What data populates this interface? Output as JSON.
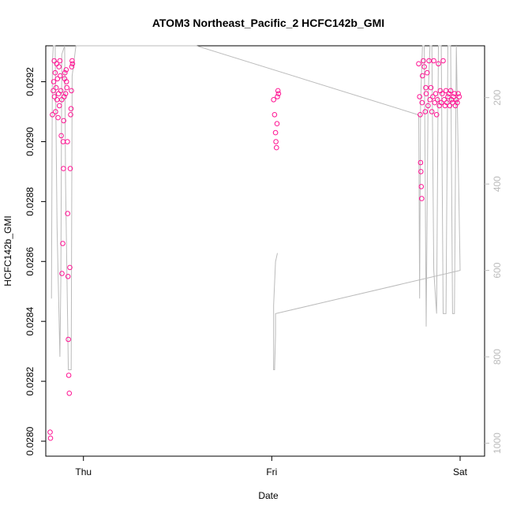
{
  "chart_data": {
    "type": "scatter",
    "title": "ATOM3 Northeast_Pacific_2 HCFC142b_GMI",
    "xlabel": "Date",
    "ylabel": "HCFC142b_GMI",
    "x_ticks": [
      "Thu",
      "Fri",
      "Sat"
    ],
    "x_tick_values": [
      1.0,
      2.0,
      3.0
    ],
    "xlim": [
      0.8,
      3.13
    ],
    "ylim": [
      0.02795,
      0.02932
    ],
    "y_ticks": [
      0.028,
      0.0282,
      0.0284,
      0.0286,
      0.0288,
      0.029,
      0.0292
    ],
    "y_tick_labels": [
      "0.0280",
      "0.0282",
      "0.0284",
      "0.0286",
      "0.0288",
      "0.0290",
      "0.0292"
    ],
    "right_axis": {
      "label": "",
      "ticks": [
        200,
        400,
        600,
        800,
        1000
      ],
      "ylim": [
        1030,
        80
      ],
      "color": "#bbbbbb"
    },
    "colors": {
      "points": "#ff1493",
      "line": "#bbbbbb"
    },
    "series": [
      {
        "type": "points",
        "values": [
          [
            0.835,
            0.02909
          ],
          [
            0.84,
            0.02917
          ],
          [
            0.842,
            0.0292
          ],
          [
            0.845,
            0.02927
          ],
          [
            0.846,
            0.02915
          ],
          [
            0.85,
            0.02923
          ],
          [
            0.852,
            0.0291
          ],
          [
            0.855,
            0.02918
          ],
          [
            0.858,
            0.02926
          ],
          [
            0.86,
            0.02914
          ],
          [
            0.862,
            0.02921
          ],
          [
            0.865,
            0.02908
          ],
          [
            0.868,
            0.02916
          ],
          [
            0.87,
            0.02925
          ],
          [
            0.872,
            0.02912
          ],
          [
            0.875,
            0.02927
          ],
          [
            0.877,
            0.02922
          ],
          [
            0.88,
            0.02917
          ],
          [
            0.882,
            0.02902
          ],
          [
            0.885,
            0.02914
          ],
          [
            0.886,
            0.02856
          ],
          [
            0.89,
            0.02866
          ],
          [
            0.892,
            0.029
          ],
          [
            0.894,
            0.02891
          ],
          [
            0.895,
            0.02907
          ],
          [
            0.898,
            0.02915
          ],
          [
            0.9,
            0.02921
          ],
          [
            0.902,
            0.02923
          ],
          [
            0.905,
            0.02916
          ],
          [
            0.908,
            0.02924
          ],
          [
            0.91,
            0.0292
          ],
          [
            0.912,
            0.02918
          ],
          [
            0.915,
            0.029
          ],
          [
            0.916,
            0.02876
          ],
          [
            0.918,
            0.02855
          ],
          [
            0.92,
            0.02834
          ],
          [
            0.922,
            0.02822
          ],
          [
            0.925,
            0.02816
          ],
          [
            0.928,
            0.02858
          ],
          [
            0.93,
            0.02891
          ],
          [
            0.932,
            0.02909
          ],
          [
            0.934,
            0.02911
          ],
          [
            0.936,
            0.02917
          ],
          [
            0.938,
            0.02925
          ],
          [
            0.94,
            0.02927
          ],
          [
            0.942,
            0.02926
          ],
          [
            0.823,
            0.02803
          ],
          [
            0.825,
            0.02801
          ],
          [
            2.01,
            0.02914
          ],
          [
            2.015,
            0.02909
          ],
          [
            2.02,
            0.02903
          ],
          [
            2.022,
            0.029
          ],
          [
            2.025,
            0.02898
          ],
          [
            2.028,
            0.02906
          ],
          [
            2.03,
            0.02915
          ],
          [
            2.033,
            0.02917
          ],
          [
            2.036,
            0.02916
          ],
          [
            2.78,
            0.02926
          ],
          [
            2.785,
            0.02915
          ],
          [
            2.788,
            0.02909
          ],
          [
            2.79,
            0.02893
          ],
          [
            2.792,
            0.0289
          ],
          [
            2.794,
            0.02885
          ],
          [
            2.796,
            0.02881
          ],
          [
            2.798,
            0.02913
          ],
          [
            2.8,
            0.02922
          ],
          [
            2.805,
            0.02927
          ],
          [
            2.81,
            0.02925
          ],
          [
            2.815,
            0.0291
          ],
          [
            2.818,
            0.02918
          ],
          [
            2.82,
            0.02916
          ],
          [
            2.825,
            0.02923
          ],
          [
            2.83,
            0.02912
          ],
          [
            2.835,
            0.02927
          ],
          [
            2.84,
            0.02914
          ],
          [
            2.845,
            0.02918
          ],
          [
            2.85,
            0.0291
          ],
          [
            2.855,
            0.02915
          ],
          [
            2.86,
            0.02927
          ],
          [
            2.865,
            0.02913
          ],
          [
            2.87,
            0.02916
          ],
          [
            2.875,
            0.02909
          ],
          [
            2.88,
            0.02914
          ],
          [
            2.885,
            0.02926
          ],
          [
            2.89,
            0.02912
          ],
          [
            2.895,
            0.02917
          ],
          [
            2.9,
            0.02913
          ],
          [
            2.905,
            0.02916
          ],
          [
            2.91,
            0.02927
          ],
          [
            2.915,
            0.02914
          ],
          [
            2.92,
            0.02912
          ],
          [
            2.925,
            0.02917
          ],
          [
            2.93,
            0.02913
          ],
          [
            2.935,
            0.02915
          ],
          [
            2.94,
            0.02916
          ],
          [
            2.945,
            0.02912
          ],
          [
            2.95,
            0.02917
          ],
          [
            2.955,
            0.02914
          ],
          [
            2.96,
            0.02913
          ],
          [
            2.965,
            0.02915
          ],
          [
            2.97,
            0.02916
          ],
          [
            2.975,
            0.02912
          ],
          [
            2.98,
            0.02914
          ],
          [
            2.985,
            0.02913
          ],
          [
            2.99,
            0.02916
          ],
          [
            2.995,
            0.02915
          ]
        ]
      },
      {
        "type": "line",
        "axis": "right",
        "values": [
          [
            0.83,
            665
          ],
          [
            0.835,
            120
          ],
          [
            0.84,
            80
          ],
          [
            0.85,
            80
          ],
          [
            0.86,
            500
          ],
          [
            0.875,
            800
          ],
          [
            0.88,
            620
          ],
          [
            0.885,
            100
          ],
          [
            0.9,
            80
          ],
          [
            0.905,
            400
          ],
          [
            0.92,
            830
          ],
          [
            0.935,
            830
          ],
          [
            0.94,
            150
          ],
          [
            0.96,
            80
          ],
          [
            1.6,
            80
          ],
          [
            2.78,
            240
          ],
          [
            2.785,
            665
          ],
          [
            2.79,
            210
          ],
          [
            2.8,
            80
          ],
          [
            2.81,
            80
          ],
          [
            2.82,
            730
          ],
          [
            2.83,
            200
          ],
          [
            2.84,
            80
          ],
          [
            2.85,
            80
          ],
          [
            2.86,
            600
          ],
          [
            2.875,
            700
          ],
          [
            2.885,
            80
          ],
          [
            2.9,
            80
          ],
          [
            2.91,
            700
          ],
          [
            2.925,
            700
          ],
          [
            2.935,
            80
          ],
          [
            2.95,
            80
          ],
          [
            2.96,
            700
          ],
          [
            2.97,
            700
          ],
          [
            2.98,
            80
          ],
          [
            3.0,
            600
          ],
          [
            2.02,
            700
          ],
          [
            2.02,
            750
          ],
          [
            2.015,
            830
          ],
          [
            2.01,
            830
          ],
          [
            2.01,
            700
          ],
          [
            2.01,
            680
          ],
          [
            2.02,
            580
          ],
          [
            2.03,
            560
          ]
        ]
      }
    ]
  }
}
